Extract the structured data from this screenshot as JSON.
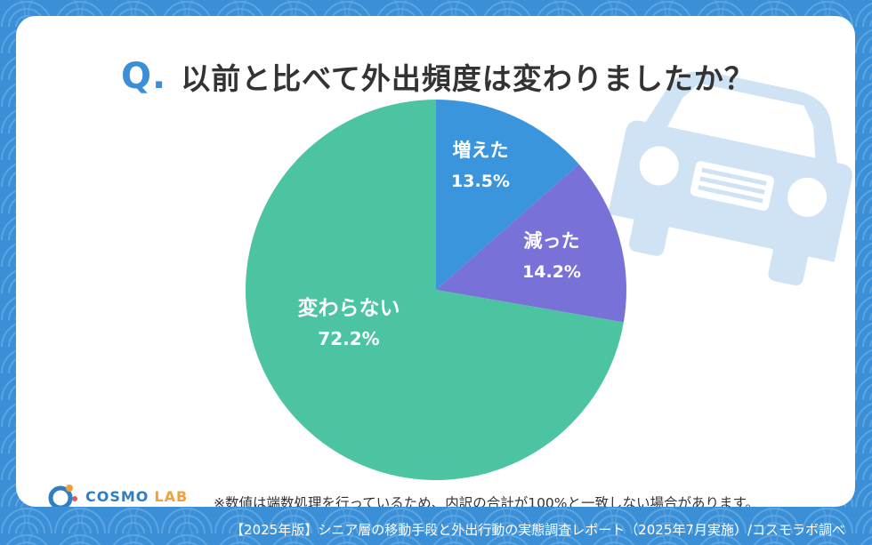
{
  "title": {
    "q_mark": "Q.",
    "question": "以前と比べて外出頻度は変わりましたか？"
  },
  "chart_data": {
    "type": "pie",
    "start_angle_deg": 0,
    "direction": "clockwise",
    "slices": [
      {
        "label": "増えた",
        "value": 13.5,
        "display": "13.5%",
        "color": "#3a95dc"
      },
      {
        "label": "減った",
        "value": 14.2,
        "display": "14.2%",
        "color": "#7872d8"
      },
      {
        "label": "変わらない",
        "value": 72.2,
        "display": "72.2%",
        "color": "#4cc4a1"
      }
    ]
  },
  "note": "※数値は端数処理を行っているため、内訳の合計が100%と一致しない場合があります。",
  "logo": {
    "name": "COSMO",
    "suffix": "LAB"
  },
  "footer": "【2025年版】シニア層の移動手段と外出行動の実態調査レポート（2025年7月実施）/コスモラボ調べ",
  "colors": {
    "background": "#3b8fd6",
    "card": "#ffffff",
    "car_watermark": "#cfe3f5",
    "accent": "#3b8fd6"
  }
}
